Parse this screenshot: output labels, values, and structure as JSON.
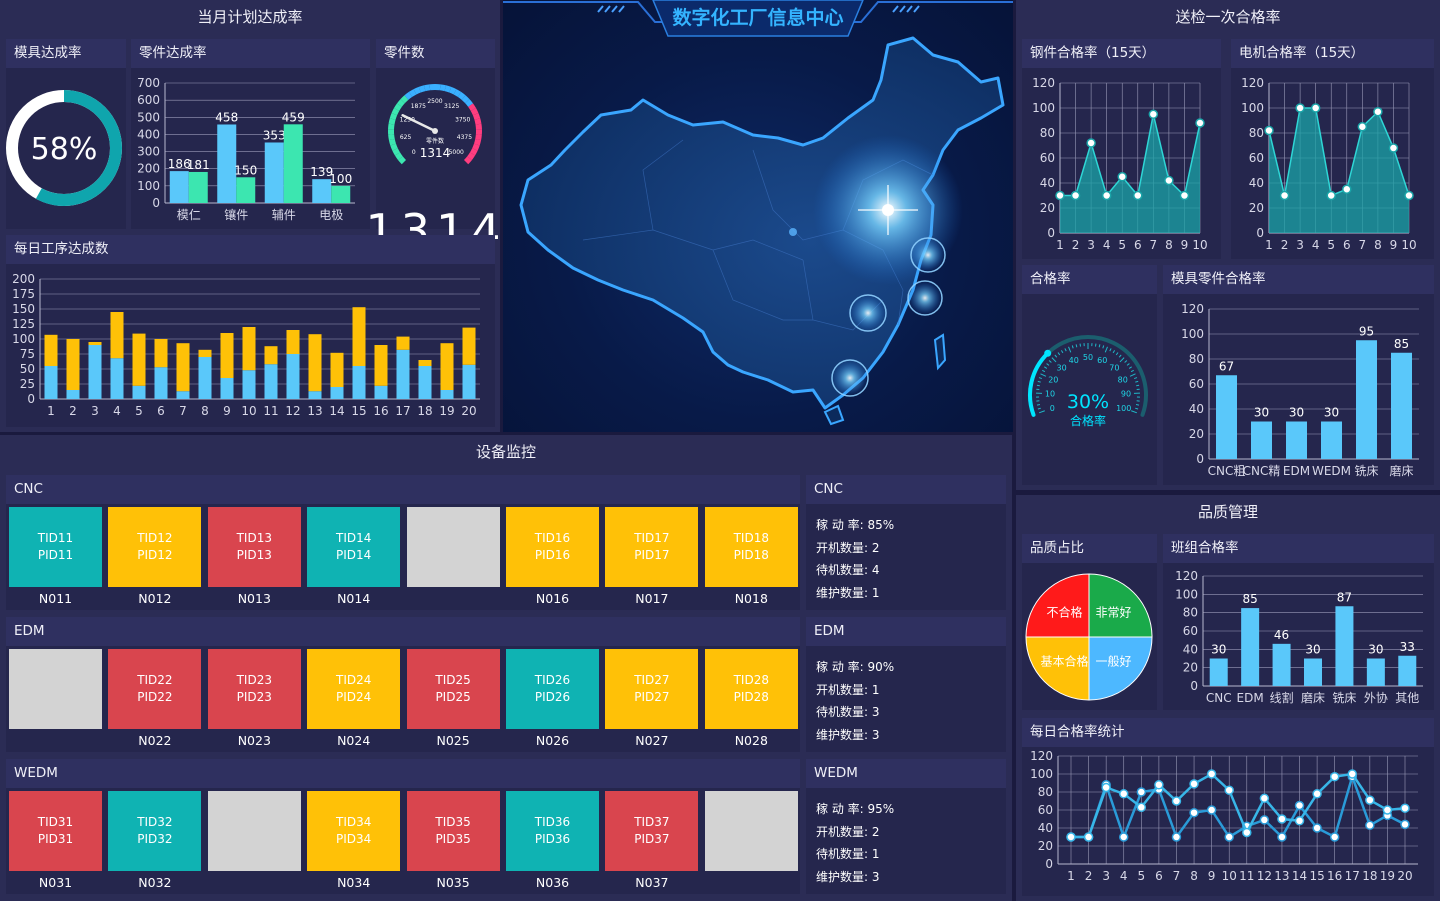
{
  "colors": {
    "teal": "#0fb3b3",
    "yellow": "#ffc107",
    "red": "#d9454e",
    "grey": "#d3d3d3",
    "blue": "#5ac8fa",
    "green": "#3ce6b0",
    "bg": "#1a1a3e"
  },
  "monthly": {
    "title": "当月计划达成率",
    "mold": {
      "title": "模具达成率",
      "value": 58,
      "label": "58%"
    },
    "parts": {
      "title": "零件达成率",
      "chart_data": {
        "type": "bar",
        "categories": [
          "模仁",
          "镶件",
          "辅件",
          "电极"
        ],
        "series": [
          {
            "values": [
              186,
              458,
              353,
              139
            ]
          },
          {
            "values": [
              181,
              150,
              459,
              100
            ]
          }
        ],
        "ylim": [
          0,
          700
        ],
        "yticks": [
          "700",
          "600",
          "500",
          "400",
          "300",
          "200",
          "100",
          "0"
        ]
      }
    },
    "count": {
      "title": "零件数",
      "value": 1314,
      "display": "1314",
      "dial_label": "零件数",
      "dial_display": "1314",
      "ticks": [
        "0",
        "625",
        "1250",
        "1875",
        "2500",
        "3125",
        "3750",
        "4375",
        "5000"
      ]
    }
  },
  "daily": {
    "title": "每日工序达成数",
    "chart_data": {
      "type": "bar",
      "stacked": true,
      "categories": [
        "1",
        "2",
        "3",
        "4",
        "5",
        "6",
        "7",
        "8",
        "9",
        "10",
        "11",
        "12",
        "13",
        "14",
        "15",
        "16",
        "17",
        "18",
        "19",
        "20"
      ],
      "series": [
        {
          "values": [
            55,
            15,
            90,
            68,
            22,
            53,
            13,
            70,
            35,
            48,
            58,
            75,
            13,
            20,
            55,
            22,
            82,
            55,
            15,
            57
          ]
        },
        {
          "values": [
            52,
            85,
            5,
            77,
            87,
            47,
            80,
            12,
            75,
            72,
            30,
            40,
            95,
            57,
            98,
            68,
            22,
            10,
            78,
            62
          ]
        }
      ],
      "ylim": [
        0,
        200
      ],
      "yticks": [
        "200",
        "175",
        "150",
        "125",
        "100",
        "75",
        "50",
        "25",
        "0"
      ]
    }
  },
  "center": {
    "title": "数字化工厂信息中心"
  },
  "inspection": {
    "title": "送检一次合格率",
    "steel": {
      "title": "钢件合格率（15天）",
      "chart_data": {
        "type": "area",
        "x": [
          "1",
          "2",
          "3",
          "4",
          "5",
          "6",
          "7",
          "8",
          "9",
          "10"
        ],
        "values": [
          30,
          30,
          72,
          30,
          45,
          30,
          95,
          42,
          30,
          88
        ],
        "ylim": [
          0,
          120
        ],
        "yticks": [
          "120",
          "100",
          "80",
          "60",
          "40",
          "20",
          "0"
        ]
      }
    },
    "motor": {
      "title": "电机合格率（15天）",
      "chart_data": {
        "type": "area",
        "x": [
          "1",
          "2",
          "3",
          "4",
          "5",
          "6",
          "7",
          "8",
          "9",
          "10"
        ],
        "values": [
          82,
          30,
          100,
          100,
          30,
          35,
          85,
          97,
          68,
          30
        ],
        "ylim": [
          0,
          120
        ],
        "yticks": [
          "120",
          "100",
          "80",
          "60",
          "40",
          "20",
          "0"
        ]
      }
    },
    "rate": {
      "title": "合格率",
      "value": 30,
      "label": "30%",
      "sublabel": "合格率",
      "ticks": [
        "0",
        "10",
        "20",
        "30",
        "40",
        "50",
        "60",
        "70",
        "80",
        "90",
        "100"
      ]
    },
    "mold_parts": {
      "title": "模具零件合格率",
      "chart_data": {
        "type": "bar",
        "categories": [
          "CNC粗",
          "CNC精",
          "EDM",
          "WEDM",
          "铣床",
          "磨床"
        ],
        "values": [
          67,
          30,
          30,
          30,
          95,
          85
        ],
        "ylim": [
          0,
          120
        ],
        "yticks": [
          "120",
          "100",
          "80",
          "60",
          "40",
          "20",
          "0"
        ]
      }
    }
  },
  "equipment": {
    "title": "设备监控",
    "groups": [
      {
        "name": "CNC",
        "tiles": [
          {
            "tid": "TID11",
            "pid": "PID11",
            "label": "N011",
            "status": "teal"
          },
          {
            "tid": "TID12",
            "pid": "PID12",
            "label": "N012",
            "status": "yellow"
          },
          {
            "tid": "TID13",
            "pid": "PID13",
            "label": "N013",
            "status": "red"
          },
          {
            "tid": "TID14",
            "pid": "PID14",
            "label": "N014",
            "status": "teal"
          },
          {
            "tid": "",
            "pid": "",
            "label": "",
            "status": "grey"
          },
          {
            "tid": "TID16",
            "pid": "PID16",
            "label": "N016",
            "status": "yellow"
          },
          {
            "tid": "TID17",
            "pid": "PID17",
            "label": "N017",
            "status": "yellow"
          },
          {
            "tid": "TID18",
            "pid": "PID18",
            "label": "N018",
            "status": "yellow"
          }
        ],
        "stats": {
          "title": "CNC",
          "util": "稼 动 率: 85%",
          "running": "开机数量: 2",
          "idle": "待机数量: 4",
          "maint": "维护数量: 1"
        }
      },
      {
        "name": "EDM",
        "tiles": [
          {
            "tid": "",
            "pid": "",
            "label": "",
            "status": "grey"
          },
          {
            "tid": "TID22",
            "pid": "PID22",
            "label": "N022",
            "status": "red"
          },
          {
            "tid": "TID23",
            "pid": "PID23",
            "label": "N023",
            "status": "red"
          },
          {
            "tid": "TID24",
            "pid": "PID24",
            "label": "N024",
            "status": "yellow"
          },
          {
            "tid": "TID25",
            "pid": "PID25",
            "label": "N025",
            "status": "red"
          },
          {
            "tid": "TID26",
            "pid": "PID26",
            "label": "N026",
            "status": "teal"
          },
          {
            "tid": "TID27",
            "pid": "PID27",
            "label": "N027",
            "status": "yellow"
          },
          {
            "tid": "TID28",
            "pid": "PID28",
            "label": "N028",
            "status": "yellow"
          }
        ],
        "stats": {
          "title": "EDM",
          "util": "稼 动 率: 90%",
          "running": "开机数量: 1",
          "idle": "待机数量: 3",
          "maint": "维护数量: 3"
        }
      },
      {
        "name": "WEDM",
        "tiles": [
          {
            "tid": "TID31",
            "pid": "PID31",
            "label": "N031",
            "status": "red"
          },
          {
            "tid": "TID32",
            "pid": "PID32",
            "label": "N032",
            "status": "teal"
          },
          {
            "tid": "",
            "pid": "",
            "label": "",
            "status": "grey"
          },
          {
            "tid": "TID34",
            "pid": "PID34",
            "label": "N034",
            "status": "yellow"
          },
          {
            "tid": "TID35",
            "pid": "PID35",
            "label": "N035",
            "status": "red"
          },
          {
            "tid": "TID36",
            "pid": "PID36",
            "label": "N036",
            "status": "teal"
          },
          {
            "tid": "TID37",
            "pid": "PID37",
            "label": "N037",
            "status": "red"
          },
          {
            "tid": "",
            "pid": "",
            "label": "",
            "status": "grey"
          }
        ],
        "stats": {
          "title": "WEDM",
          "util": "稼 动 率: 95%",
          "running": "开机数量: 2",
          "idle": "待机数量: 1",
          "maint": "维护数量: 3"
        }
      }
    ]
  },
  "quality": {
    "title": "品质管理",
    "share": {
      "title": "品质占比",
      "chart_data": {
        "type": "pie",
        "slices": [
          {
            "label": "非常好",
            "value": 25,
            "color": "#1aaa4a"
          },
          {
            "label": "一般好",
            "value": 25,
            "color": "#4db8ff"
          },
          {
            "label": "基本合格",
            "value": 25,
            "color": "#ffc107"
          },
          {
            "label": "不合格",
            "value": 25,
            "color": "#ff1a1a"
          }
        ]
      }
    },
    "team": {
      "title": "班组合格率",
      "chart_data": {
        "type": "bar",
        "categories": [
          "CNC",
          "EDM",
          "线割",
          "磨床",
          "铣床",
          "外协",
          "其他"
        ],
        "values": [
          30,
          85,
          46,
          30,
          87,
          30,
          33
        ],
        "ylim": [
          0,
          120
        ],
        "yticks": [
          "120",
          "100",
          "80",
          "60",
          "40",
          "20",
          "0"
        ]
      }
    },
    "daily": {
      "title": "每日合格率统计",
      "chart_data": {
        "type": "line",
        "x": [
          "1",
          "2",
          "3",
          "4",
          "5",
          "6",
          "7",
          "8",
          "9",
          "10",
          "11",
          "12",
          "13",
          "14",
          "15",
          "16",
          "17",
          "18",
          "19",
          "20"
        ],
        "series": [
          {
            "values": [
              30,
              30,
              88,
              30,
              80,
              83,
              30,
              57,
              60,
              30,
              42,
              49,
              30,
              65,
              40,
              30,
              97,
              43,
              54,
              44
            ]
          },
          {
            "values": [
              30,
              30,
              85,
              78,
              63,
              88,
              70,
              89,
              100,
              82,
              35,
              73,
              50,
              48,
              78,
              97,
              100,
              71,
              60,
              62
            ]
          }
        ],
        "ylim": [
          0,
          120
        ],
        "yticks": [
          "120",
          "100",
          "80",
          "60",
          "40",
          "20",
          "0"
        ]
      }
    }
  }
}
